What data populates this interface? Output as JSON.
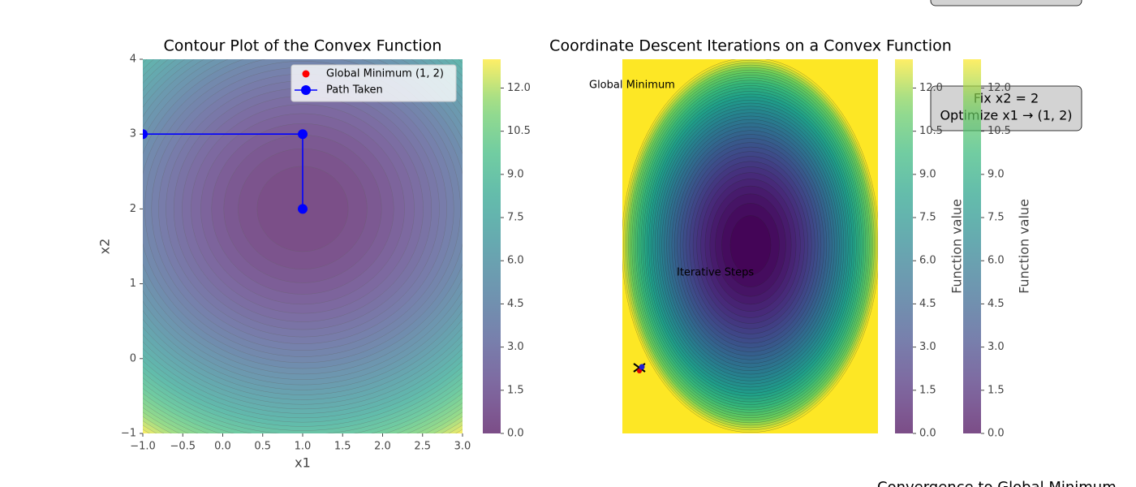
{
  "chart_data": [
    {
      "type": "contour",
      "title": "Contour Plot of the Convex Function",
      "x_label": "x1",
      "y_label": "x2",
      "xlim": [
        -1,
        3
      ],
      "ylim": [
        -1,
        4
      ],
      "xticks": [
        {
          "value": -1,
          "label": "−1.0"
        },
        {
          "value": -0.5,
          "label": "−0.5"
        },
        {
          "value": 0,
          "label": "0.0"
        },
        0.5,
        {
          "value": 1,
          "label": "1.0"
        },
        1.5,
        {
          "value": 2,
          "label": "2.0"
        },
        2.5,
        {
          "value": 3,
          "label": "3.0"
        }
      ],
      "yticks": [
        {
          "value": -1,
          "label": "−1"
        },
        0,
        1,
        2,
        3,
        4
      ],
      "clim": [
        0,
        13
      ],
      "cticks": [
        {
          "value": 0,
          "label": "0.0"
        },
        1.5,
        {
          "value": 3,
          "label": "3.0"
        },
        4.5,
        {
          "value": 6,
          "label": "6.0"
        },
        7.5,
        {
          "value": 9,
          "label": "9.0"
        },
        10.5,
        {
          "value": 12,
          "label": "12.0"
        }
      ],
      "cmap": "viridis",
      "alpha": 0.7,
      "legend": "upper right",
      "series": [
        {
          "name": "Global Minimum (1, 2)",
          "type": "scatter",
          "color": "#ff0000",
          "x": [
            1
          ],
          "y": [
            2
          ]
        },
        {
          "name": "Path Taken",
          "type": "line",
          "color": "#0000ff",
          "x": [
            -1,
            1,
            1
          ],
          "y": [
            3,
            3,
            2
          ]
        }
      ]
    },
    {
      "type": "contour",
      "title": "Coordinate Descent Iterations on a Convex Function",
      "axis": "off",
      "clim": [
        0,
        13
      ],
      "cticks": [
        {
          "value": 0,
          "label": "0.0"
        },
        1.5,
        {
          "value": 3,
          "label": "3.0"
        },
        4.5,
        {
          "value": 6,
          "label": "6.0"
        },
        7.5,
        {
          "value": 9,
          "label": "9.0"
        },
        10.5,
        {
          "value": 12,
          "label": "12.0"
        }
      ],
      "cmap": "viridis",
      "colorbar_label": "Function value",
      "annotations": [
        "Global Minimum",
        "Iterative Steps"
      ],
      "box_text": [
        "Fix x2 = 2",
        "Optimize x1 → (1, 2)"
      ],
      "footer": "Convergence to Global Minimum"
    }
  ]
}
